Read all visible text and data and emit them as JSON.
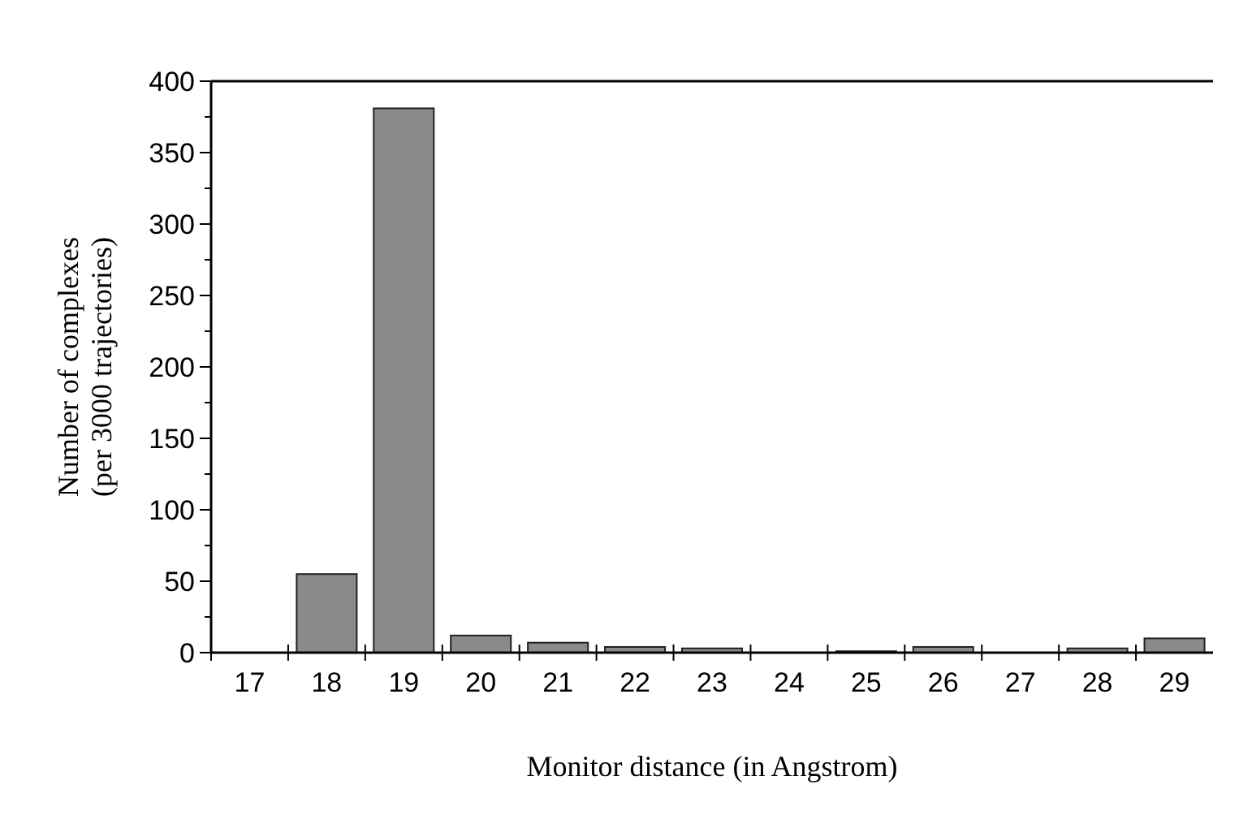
{
  "chart_data": {
    "type": "bar",
    "xlabel": "Monitor distance (in Angstrom)",
    "ylabel": "Number of complexes\n(per 3000 trajectories)",
    "categories": [
      "17",
      "18",
      "19",
      "20",
      "21",
      "22",
      "23",
      "24",
      "25",
      "26",
      "27",
      "28",
      "29"
    ],
    "values": [
      0,
      55,
      381,
      12,
      7,
      4,
      3,
      0,
      1,
      4,
      0,
      3,
      10
    ],
    "color": "#8a8a8a",
    "ylim": [
      0,
      400
    ],
    "yticks": [
      0,
      {
        "value": 25,
        "label": null
      },
      50,
      {
        "value": 75,
        "label": null
      },
      100,
      {
        "value": 125,
        "label": null
      },
      150,
      {
        "value": 175,
        "label": null
      },
      200,
      {
        "value": 225,
        "label": null
      },
      250,
      {
        "value": 275,
        "label": null
      },
      300,
      {
        "value": 325,
        "label": null
      },
      350,
      {
        "value": 375,
        "label": null
      },
      400
    ],
    "grid": false
  }
}
